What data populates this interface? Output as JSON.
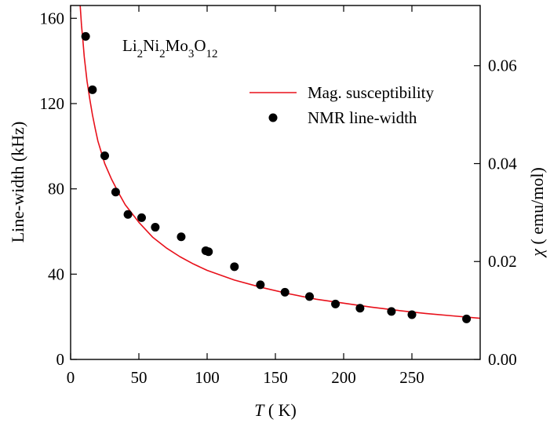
{
  "chart_data": {
    "type": "line+scatter",
    "compound_label": {
      "parts": [
        {
          "text": "Li",
          "sub": false
        },
        {
          "text": "2",
          "sub": true
        },
        {
          "text": "Ni",
          "sub": false
        },
        {
          "text": "2",
          "sub": true
        },
        {
          "text": "Mo",
          "sub": false
        },
        {
          "text": "3",
          "sub": true
        },
        {
          "text": "O",
          "sub": false
        },
        {
          "text": "12",
          "sub": true
        }
      ]
    },
    "xlabel_italic": "T",
    "xlabel_rest": " ( K)",
    "ylabel": "Line-width (kHz)",
    "y2label_symbol": "χ",
    "y2label_rest": " ( emu/mol)",
    "xlim": [
      0,
      300
    ],
    "ylim": [
      0,
      166
    ],
    "y2lim": [
      0,
      0.0723
    ],
    "xticks": [
      0,
      50,
      100,
      150,
      200,
      250
    ],
    "yticks": [
      0,
      40,
      80,
      120,
      160
    ],
    "y2ticks": [
      "0.00",
      "0.02",
      "0.04",
      "0.06"
    ],
    "legend_position": "upper-right",
    "series": [
      {
        "name": "Mag. susceptibility",
        "kind": "line",
        "color": "#e8101a",
        "axis": "right",
        "x": [
          7,
          8,
          9,
          10,
          12,
          14,
          16,
          18,
          20,
          25,
          30,
          35,
          40,
          50,
          60,
          70,
          80,
          90,
          100,
          120,
          140,
          160,
          180,
          200,
          220,
          240,
          260,
          280,
          300
        ],
        "y": [
          0.0723,
          0.0682,
          0.0651,
          0.0618,
          0.0569,
          0.0532,
          0.05,
          0.0472,
          0.0446,
          0.04,
          0.0368,
          0.0341,
          0.0316,
          0.028,
          0.025,
          0.0228,
          0.021,
          0.0195,
          0.0182,
          0.0162,
          0.0147,
          0.0134,
          0.0123,
          0.0115,
          0.0107,
          0.01,
          0.0094,
          0.0089,
          0.0084
        ]
      },
      {
        "name": "NMR line-width",
        "kind": "scatter",
        "color": "#000000",
        "axis": "left",
        "x": [
          11,
          16,
          25,
          33,
          42,
          52,
          62,
          81,
          99,
          101,
          120,
          139,
          157,
          175,
          194,
          212,
          235,
          250,
          290
        ],
        "y": [
          151.5,
          126.5,
          95.5,
          78.5,
          68,
          66.5,
          62,
          57.5,
          51,
          50.5,
          43.5,
          35,
          31.5,
          29.5,
          26,
          24,
          22.5,
          21,
          19
        ]
      }
    ]
  }
}
